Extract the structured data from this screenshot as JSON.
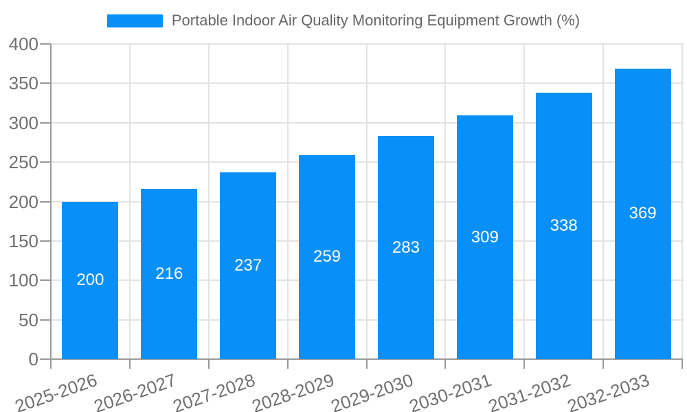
{
  "legend": {
    "label": "Portable Indoor Air Quality Monitoring Equipment Growth (%)"
  },
  "colors": {
    "bar": "#0890f8",
    "axis_line": "#999999",
    "grid_line": "#e3e3e3",
    "axis_label": "#707070",
    "legend_label": "#666666",
    "value_label": "#ffffff",
    "background": "#ffffff"
  },
  "chart_data": {
    "type": "bar",
    "title": "Portable Indoor Air Quality Monitoring Equipment Growth (%)",
    "categories": [
      "2025-2026",
      "2026-2027",
      "2027-2028",
      "2028-2029",
      "2029-2030",
      "2030-2031",
      "2031-2032",
      "2032-2033"
    ],
    "values": [
      200,
      216,
      237,
      259,
      283,
      309,
      338,
      369
    ],
    "xlabel": "",
    "ylabel": "",
    "ylim": [
      0,
      400
    ],
    "ytick_step": 50,
    "yticks": [
      0,
      50,
      100,
      150,
      200,
      250,
      300,
      350,
      400
    ],
    "grid": true,
    "legend_position": "top-center",
    "value_label_position": "inside-center",
    "xlabel_rotation_deg": -19
  }
}
